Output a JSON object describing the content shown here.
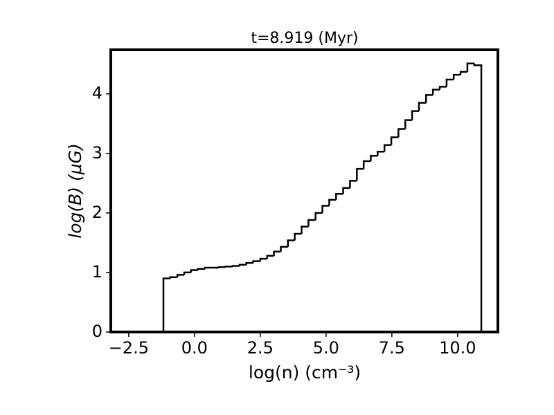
{
  "chart_data": {
    "type": "histogram",
    "title": "t=8.919 (Myr)",
    "x_label": "log(n) (cm⁻³)",
    "y_label": "log(B) (μG)",
    "bins": [
      -1.18,
      -0.92,
      -0.65,
      -0.39,
      -0.13,
      0.13,
      0.4,
      0.66,
      0.92,
      1.18,
      1.45,
      1.71,
      1.97,
      2.23,
      2.5,
      2.76,
      3.02,
      3.28,
      3.55,
      3.81,
      4.07,
      4.33,
      4.6,
      4.86,
      5.12,
      5.38,
      5.65,
      5.91,
      6.17,
      6.43,
      6.7,
      6.96,
      7.22,
      7.48,
      7.75,
      8.01,
      8.27,
      8.53,
      8.8,
      9.06,
      9.32,
      9.58,
      9.85,
      10.11,
      10.37,
      10.63,
      10.9
    ],
    "values": [
      0.9,
      0.92,
      0.96,
      1.0,
      1.04,
      1.06,
      1.08,
      1.08,
      1.09,
      1.1,
      1.11,
      1.13,
      1.16,
      1.19,
      1.23,
      1.28,
      1.35,
      1.43,
      1.54,
      1.65,
      1.77,
      1.88,
      2.0,
      2.12,
      2.22,
      2.32,
      2.42,
      2.54,
      2.74,
      2.87,
      2.96,
      3.03,
      3.14,
      3.27,
      3.41,
      3.56,
      3.71,
      3.85,
      3.98,
      4.07,
      4.12,
      4.24,
      4.32,
      4.37,
      4.51,
      4.48
    ],
    "color": "#000000",
    "xlim": [
      -3.18,
      11.53
    ],
    "ylim": [
      0,
      4.74
    ],
    "xticks": [
      {
        "value": -2.5,
        "label": "−2.5"
      },
      {
        "value": 0,
        "label": "0.0"
      },
      2.5,
      {
        "value": 5,
        "label": "5.0"
      },
      7.5,
      {
        "value": 10,
        "label": "10.0"
      }
    ],
    "yticks": [
      0,
      1,
      2,
      3,
      4
    ],
    "grid": false
  }
}
